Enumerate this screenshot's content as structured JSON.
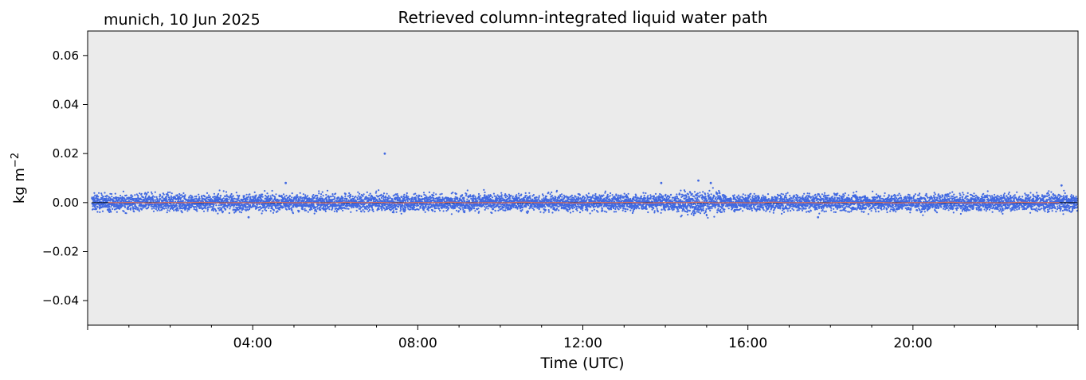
{
  "location_date": "munich, 10 Jun 2025",
  "chart_data": {
    "type": "scatter",
    "title": "Retrieved column-integrated liquid water path",
    "xlabel": "Time (UTC)",
    "ylabel": "kg m",
    "ylabel_superscript": "−2",
    "xlim_hours": [
      0,
      24
    ],
    "ylim": [
      -0.05,
      0.07
    ],
    "x_ticks": [
      {
        "hour": 4,
        "label": "04:00"
      },
      {
        "hour": 8,
        "label": "08:00"
      },
      {
        "hour": 12,
        "label": "12:00"
      },
      {
        "hour": 16,
        "label": "16:00"
      },
      {
        "hour": 20,
        "label": "20:00"
      }
    ],
    "y_ticks": [
      {
        "value": -0.04,
        "label": "−0.04"
      },
      {
        "value": -0.02,
        "label": "−0.02"
      },
      {
        "value": 0.0,
        "label": "0.00"
      },
      {
        "value": 0.02,
        "label": "0.02"
      },
      {
        "value": 0.04,
        "label": "0.04"
      },
      {
        "value": 0.06,
        "label": "0.06"
      }
    ],
    "series": [
      {
        "kind": "scatter",
        "color": "#4169e1",
        "description_band": {
          "typical_min": -0.004,
          "typical_max": 0.004
        },
        "notable_points": [
          {
            "hour": 7.2,
            "value": 0.02
          },
          {
            "hour": 4.8,
            "value": 0.008
          },
          {
            "hour": 14.8,
            "value": 0.009
          },
          {
            "hour": 15.1,
            "value": 0.008
          },
          {
            "hour": 13.9,
            "value": 0.008
          },
          {
            "hour": 23.6,
            "value": 0.007
          },
          {
            "hour": 17.7,
            "value": -0.006
          },
          {
            "hour": 3.9,
            "value": -0.006
          }
        ]
      },
      {
        "kind": "line",
        "color": "#e07060",
        "values_level": 0.0
      },
      {
        "kind": "line",
        "color": "#000000",
        "values_level": 0.0
      }
    ],
    "background": "#ebebeb",
    "grid": false
  }
}
